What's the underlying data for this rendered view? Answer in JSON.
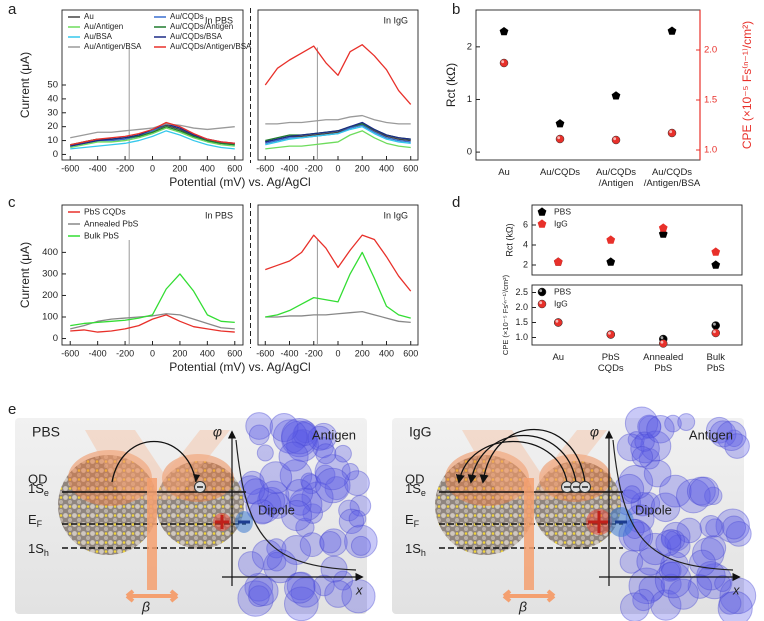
{
  "panel_labels": [
    "a",
    "b",
    "c",
    "d",
    "e"
  ],
  "chart_data": [
    {
      "type": "line",
      "annotation": "In PBS",
      "xlabel": "Potential (mV) vs. Ag/AgCl",
      "ylabel": "Current (μA)",
      "x": [
        -600,
        -500,
        -400,
        -300,
        -200,
        -100,
        0,
        100,
        200,
        300,
        400,
        500,
        600
      ],
      "xlim": [
        -660,
        660
      ],
      "xticks": [
        -600,
        -400,
        -200,
        0,
        200,
        400,
        600
      ],
      "ylim": [
        -4,
        104
      ],
      "yticks": [
        0,
        10,
        20,
        30,
        40,
        50
      ],
      "marker_x": -170,
      "legend": "upper left",
      "legend_columns": 2,
      "series": [
        {
          "name": "Au",
          "color": "#444444",
          "values": [
            6,
            9,
            11,
            11,
            12,
            14,
            17,
            21,
            18,
            13,
            10,
            8,
            8
          ]
        },
        {
          "name": "Au/CQDs",
          "color": "#3b6fd0",
          "values": [
            6,
            8,
            10,
            10,
            11,
            13,
            17,
            22,
            19,
            14,
            10,
            8,
            7
          ]
        },
        {
          "name": "Au/Antigen",
          "color": "#6ddc5c",
          "values": [
            5,
            7,
            9,
            9,
            10,
            12,
            15,
            19,
            16,
            12,
            9,
            7,
            6
          ]
        },
        {
          "name": "Au/CQDs/Antigen",
          "color": "#1f7a2e",
          "values": [
            7,
            9,
            11,
            11,
            12,
            13,
            16,
            20,
            17,
            13,
            10,
            8,
            7
          ]
        },
        {
          "name": "Au/BSA",
          "color": "#35c8ec",
          "values": [
            4,
            5,
            6,
            7,
            8,
            10,
            13,
            17,
            14,
            10,
            7,
            5,
            4
          ]
        },
        {
          "name": "Au/CQDs/BSA",
          "color": "#1c2a86",
          "values": [
            6,
            8,
            10,
            11,
            12,
            14,
            18,
            22,
            19,
            14,
            11,
            9,
            8
          ]
        },
        {
          "name": "Au/Antigen/BSA",
          "color": "#9a9a9a",
          "values": [
            12,
            14,
            16,
            16,
            17,
            18,
            19,
            22,
            21,
            19,
            18,
            19,
            20
          ]
        },
        {
          "name": "Au/CQDs/Antigen/BSA",
          "color": "#e8302a",
          "values": [
            7,
            9,
            11,
            12,
            13,
            15,
            18,
            23,
            20,
            15,
            11,
            9,
            8
          ]
        }
      ]
    },
    {
      "type": "line",
      "annotation": "In IgG",
      "x": [
        -600,
        -500,
        -400,
        -300,
        -200,
        -100,
        0,
        100,
        200,
        300,
        400,
        500,
        600
      ],
      "xlim": [
        -660,
        660
      ],
      "xticks": [
        -600,
        -400,
        -200,
        0,
        200,
        400,
        600
      ],
      "ylim": [
        -4,
        104
      ],
      "marker_x": -170,
      "series": [
        {
          "color": "#444444",
          "values": [
            9,
            11,
            13,
            13,
            14,
            15,
            16,
            19,
            22,
            17,
            13,
            11,
            10
          ]
        },
        {
          "color": "#3b6fd0",
          "values": [
            8,
            10,
            12,
            12,
            13,
            14,
            15,
            19,
            21,
            16,
            12,
            10,
            9
          ]
        },
        {
          "color": "#6ddc5c",
          "values": [
            4,
            5,
            6,
            6,
            7,
            8,
            9,
            14,
            17,
            12,
            8,
            6,
            5
          ]
        },
        {
          "color": "#1f7a2e",
          "values": [
            10,
            12,
            14,
            14,
            15,
            16,
            17,
            20,
            22,
            18,
            14,
            12,
            11
          ]
        },
        {
          "color": "#35c8ec",
          "values": [
            7,
            9,
            11,
            12,
            13,
            14,
            15,
            18,
            20,
            15,
            11,
            9,
            8
          ]
        },
        {
          "color": "#1c2a86",
          "values": [
            9,
            11,
            13,
            14,
            15,
            16,
            17,
            20,
            23,
            18,
            14,
            12,
            11
          ]
        },
        {
          "color": "#9a9a9a",
          "values": [
            22,
            22,
            23,
            23,
            24,
            25,
            25,
            27,
            28,
            25,
            23,
            22,
            22
          ]
        },
        {
          "color": "#e8302a",
          "values": [
            50,
            62,
            68,
            73,
            78,
            66,
            57,
            74,
            79,
            71,
            61,
            46,
            36
          ]
        }
      ]
    },
    {
      "type": "scatter",
      "ylabel": "Rct (kΩ)",
      "y2label": "CPE (×10⁻⁵ Fs⁽ⁿ⁻¹⁾/cm²)",
      "categories": [
        [
          "Au"
        ],
        [
          "Au/CQDs"
        ],
        [
          "Au/CQDs",
          "/Antigen"
        ],
        [
          "Au/CQDs",
          "/Antigen/BSA"
        ]
      ],
      "ylim": [
        -0.15,
        2.7
      ],
      "yticks": [
        0,
        1,
        2
      ],
      "y2lim": [
        0.9,
        2.4
      ],
      "y2ticks": [
        {
          "value": 1,
          "label": "1.0"
        },
        1.5,
        {
          "value": 2,
          "label": "2.0"
        }
      ],
      "series": [
        {
          "color": "#000000",
          "marker": "pentagon",
          "values": [
            2.29,
            0.54,
            1.07,
            2.3
          ]
        },
        {
          "color": "#e8302a",
          "marker": "sphere",
          "axis": "y2",
          "values": [
            1.87,
            1.11,
            1.1,
            1.17
          ]
        }
      ]
    },
    {
      "type": "line",
      "annotation": "In PBS",
      "xlabel": "Potential (mV) vs. Ag/AgCl",
      "ylabel": "Current (μA)",
      "x": [
        -600,
        -500,
        -400,
        -300,
        -200,
        -100,
        0,
        100,
        200,
        300,
        400,
        500,
        600
      ],
      "xlim": [
        -660,
        660
      ],
      "xticks": [
        -600,
        -400,
        -200,
        0,
        200,
        400,
        600
      ],
      "ylim": [
        -30,
        620
      ],
      "yticks": [
        0,
        100,
        200,
        300,
        400
      ],
      "marker_x": -170,
      "legend": "upper left",
      "series": [
        {
          "name": "PbS CQDs",
          "color": "#e8302a",
          "values": [
            35,
            40,
            30,
            35,
            45,
            60,
            90,
            110,
            80,
            55,
            45,
            35,
            30
          ]
        },
        {
          "name": "Annealed PbS",
          "color": "#888888",
          "values": [
            45,
            60,
            80,
            90,
            95,
            100,
            105,
            115,
            110,
            90,
            70,
            50,
            45
          ]
        },
        {
          "name": "Bulk PbS",
          "color": "#33dd33",
          "values": [
            60,
            70,
            75,
            80,
            85,
            95,
            110,
            230,
            300,
            220,
            110,
            80,
            75
          ]
        }
      ]
    },
    {
      "type": "line",
      "annotation": "In IgG",
      "x": [
        -600,
        -500,
        -400,
        -300,
        -200,
        -100,
        0,
        100,
        200,
        300,
        400,
        500,
        600
      ],
      "xlim": [
        -660,
        660
      ],
      "xticks": [
        -600,
        -400,
        -200,
        0,
        200,
        400,
        600
      ],
      "ylim": [
        -30,
        620
      ],
      "marker_x": -170,
      "series": [
        {
          "color": "#e8302a",
          "values": [
            320,
            340,
            360,
            400,
            480,
            420,
            330,
            410,
            480,
            460,
            380,
            290,
            220
          ]
        },
        {
          "color": "#888888",
          "values": [
            100,
            100,
            105,
            105,
            110,
            110,
            115,
            120,
            125,
            110,
            95,
            80,
            75
          ]
        },
        {
          "color": "#33dd33",
          "values": [
            100,
            110,
            130,
            160,
            190,
            180,
            170,
            300,
            400,
            280,
            150,
            110,
            95
          ]
        }
      ]
    },
    {
      "type": "scatter",
      "ylabel": "Rct (kΩ)",
      "legend": "upper left",
      "ylim": [
        1,
        8
      ],
      "yticks": [
        2,
        4,
        6
      ],
      "series": [
        {
          "name": "PBS",
          "color": "#000000",
          "marker": "pentagon",
          "values": [
            2.3,
            2.3,
            5.1,
            2.0
          ]
        },
        {
          "name": "IgG",
          "color": "#e8302a",
          "marker": "pentagon",
          "values": [
            2.3,
            4.5,
            5.7,
            3.3
          ]
        }
      ]
    },
    {
      "type": "scatter",
      "ylabel": "CPE (×10⁻⁵ Fs⁽ⁿ⁻¹⁾/cm²)",
      "legend": "upper left",
      "categories": [
        [
          "Au"
        ],
        [
          "PbS",
          "CQDs"
        ],
        [
          "Annealed",
          "PbS"
        ],
        [
          "Bulk",
          "PbS"
        ]
      ],
      "ylim": [
        0.75,
        2.75
      ],
      "yticks": [
        {
          "value": 1,
          "label": "1.0"
        },
        1.5,
        {
          "value": 2,
          "label": "2.0"
        },
        2.5
      ],
      "series": [
        {
          "name": "PBS",
          "color": "#000000",
          "marker": "sphere",
          "values": [
            1.5,
            1.1,
            0.95,
            1.4
          ]
        },
        {
          "name": "IgG",
          "color": "#e8302a",
          "marker": "sphere",
          "values": [
            1.5,
            1.1,
            0.8,
            1.15
          ]
        }
      ]
    }
  ],
  "schematic": {
    "panels": [
      {
        "medium": "PBS",
        "qd": "QD",
        "levels": [
          {
            "main": "1S",
            "sub": "e"
          },
          {
            "main": "E",
            "sub": "F"
          },
          {
            "main": "1S",
            "sub": "h"
          }
        ],
        "beta": "β",
        "phi": "φ",
        "antigen": "Antigen",
        "dipole": "Dipole",
        "x": "x"
      },
      {
        "medium": "IgG",
        "qd": "QD",
        "levels": [
          {
            "main": "1S",
            "sub": "e"
          },
          {
            "main": "E",
            "sub": "F"
          },
          {
            "main": "1S",
            "sub": "h"
          }
        ],
        "beta": "β",
        "phi": "φ",
        "antigen": "Antigen",
        "dipole": "Dipole",
        "x": "x"
      }
    ]
  }
}
